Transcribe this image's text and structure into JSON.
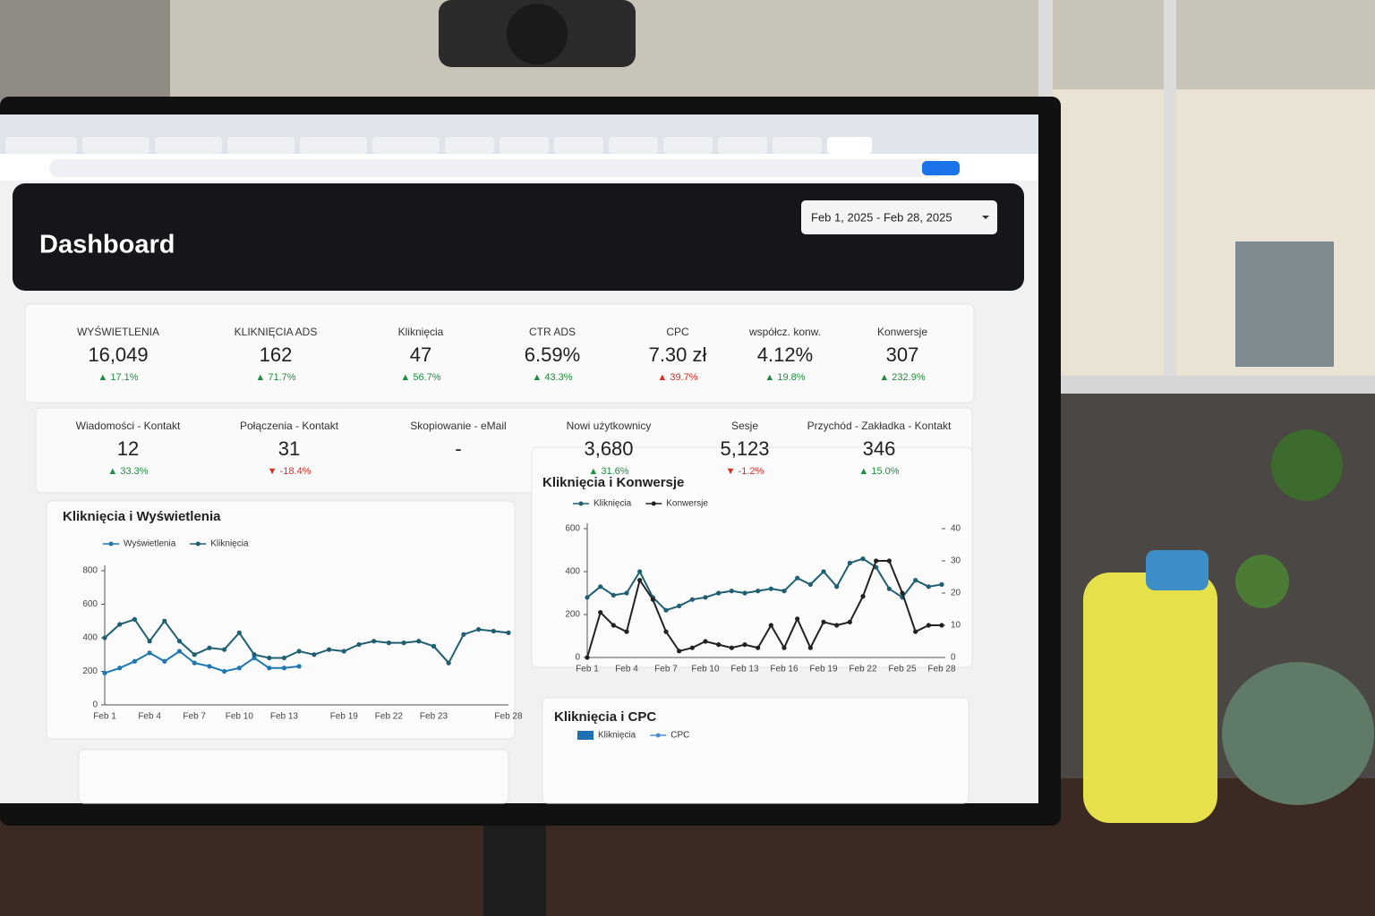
{
  "header": {
    "title": "Dashboard",
    "date_range": "Feb 1, 2025 - Feb 28, 2025"
  },
  "kpis": {
    "row1": [
      {
        "label": "WYŚWIETLENIA",
        "value": "16,049",
        "change": "▲ 17.1%",
        "color": "#1e8e3e"
      },
      {
        "label": "KLIKNIĘCIA ADS",
        "value": "162",
        "change": "▲ 71.7%",
        "color": "#1e8e3e"
      },
      {
        "label": "Kliknięcia",
        "value": "47",
        "change": "▲ 56.7%",
        "color": "#1e8e3e"
      },
      {
        "label": "CTR ADS",
        "value": "6.59%",
        "change": "▲ 43.3%",
        "color": "#1e8e3e"
      },
      {
        "label": "CPC",
        "value": "7.30 zł",
        "change": "▲ 39.7%",
        "color": "#d93025"
      },
      {
        "label": "współcz. konw.",
        "value": "4.12%",
        "change": "▲ 19.8%",
        "color": "#1e8e3e"
      },
      {
        "label": "Konwersje",
        "value": "307",
        "change": "▲ 232.9%",
        "color": "#1e8e3e"
      }
    ],
    "row2": [
      {
        "label": "Wiadomości - Kontakt",
        "value": "12",
        "change": "▲ 33.3%",
        "color": "#1e8e3e"
      },
      {
        "label": "Połączenia - Kontakt",
        "value": "31",
        "change": "▼ -18.4%",
        "color": "#d93025"
      },
      {
        "label": "Skopiowanie - eMail",
        "value": "-"
      },
      {
        "label": "Nowi użytkownicy",
        "value": "3,680",
        "change": "▲ 31.6%",
        "color": "#1e8e3e"
      },
      {
        "label": "Sesje",
        "value": "5,123",
        "change": "▼ -1.2%",
        "color": "#d93025"
      },
      {
        "label": "Przychód - Zakładka - Kontakt",
        "value": "346",
        "change": "▲ 15.0%",
        "color": "#1e8e3e"
      }
    ]
  },
  "chart_data": [
    {
      "type": "line",
      "title": "Kliknięcia i Wyświetlenia",
      "categories": [
        "Feb 1",
        null,
        null,
        "Feb 4",
        null,
        null,
        "Feb 7",
        null,
        null,
        "Feb 10",
        null,
        null,
        "Feb 13",
        null,
        null,
        null,
        "Feb 19",
        null,
        null,
        "Feb 22",
        null,
        null,
        "Feb 23",
        null,
        null,
        null,
        null,
        "Feb 28"
      ],
      "series": [
        {
          "name": "Wyświetlenia",
          "color": "#1f77b4",
          "values": [
            190,
            220,
            260,
            310,
            260,
            320,
            250,
            230,
            200,
            220,
            280,
            220,
            220,
            230,
            null,
            null,
            null,
            null,
            null,
            null,
            null,
            null,
            null,
            null,
            null,
            null,
            null,
            null
          ]
        },
        {
          "name": "Kliknięcia",
          "color": "#1f5f73",
          "values": [
            400,
            480,
            510,
            380,
            500,
            380,
            300,
            340,
            330,
            430,
            300,
            280,
            280,
            320,
            300,
            330,
            320,
            360,
            380,
            370,
            370,
            380,
            350,
            250,
            420,
            450,
            440,
            430
          ]
        }
      ],
      "ylim": [
        0,
        800
      ],
      "yticks": [
        0,
        200,
        400,
        600,
        800
      ]
    },
    {
      "type": "line",
      "title": "Kliknięcia i Konwersje",
      "categories": [
        "Feb 1",
        null,
        null,
        "Feb 4",
        null,
        null,
        "Feb 7",
        null,
        null,
        "Feb 10",
        null,
        null,
        "Feb 13",
        null,
        null,
        "Feb 16",
        null,
        null,
        "Feb 19",
        null,
        null,
        "Feb 22",
        null,
        null,
        "Feb 25",
        null,
        null,
        "Feb 28"
      ],
      "series": [
        {
          "name": "Kliknięcia",
          "color": "#1f5f73",
          "values": [
            280,
            330,
            290,
            300,
            400,
            280,
            220,
            240,
            270,
            280,
            300,
            310,
            300,
            310,
            320,
            310,
            370,
            340,
            400,
            330,
            440,
            460,
            420,
            320,
            280,
            360,
            330,
            340
          ]
        },
        {
          "name": "Konwersje",
          "color": "#222222",
          "axis": "y2",
          "values": [
            0,
            14,
            10,
            8,
            24,
            18,
            8,
            2,
            3,
            5,
            4,
            3,
            4,
            3,
            10,
            3,
            12,
            3,
            11,
            10,
            11,
            19,
            30,
            30,
            20,
            8,
            10,
            10
          ]
        }
      ],
      "ylim": [
        0,
        600
      ],
      "yticks": [
        0,
        200,
        400,
        600
      ],
      "y2lim": [
        0,
        40
      ],
      "y2ticks": [
        0,
        10,
        20,
        30,
        40
      ]
    },
    {
      "type": "bar",
      "title": "Kliknięcia i CPC",
      "series": [
        {
          "name": "Kliknięcia",
          "color": "#1f6fb5"
        },
        {
          "name": "CPC",
          "color": "#4a90d9"
        }
      ]
    }
  ]
}
